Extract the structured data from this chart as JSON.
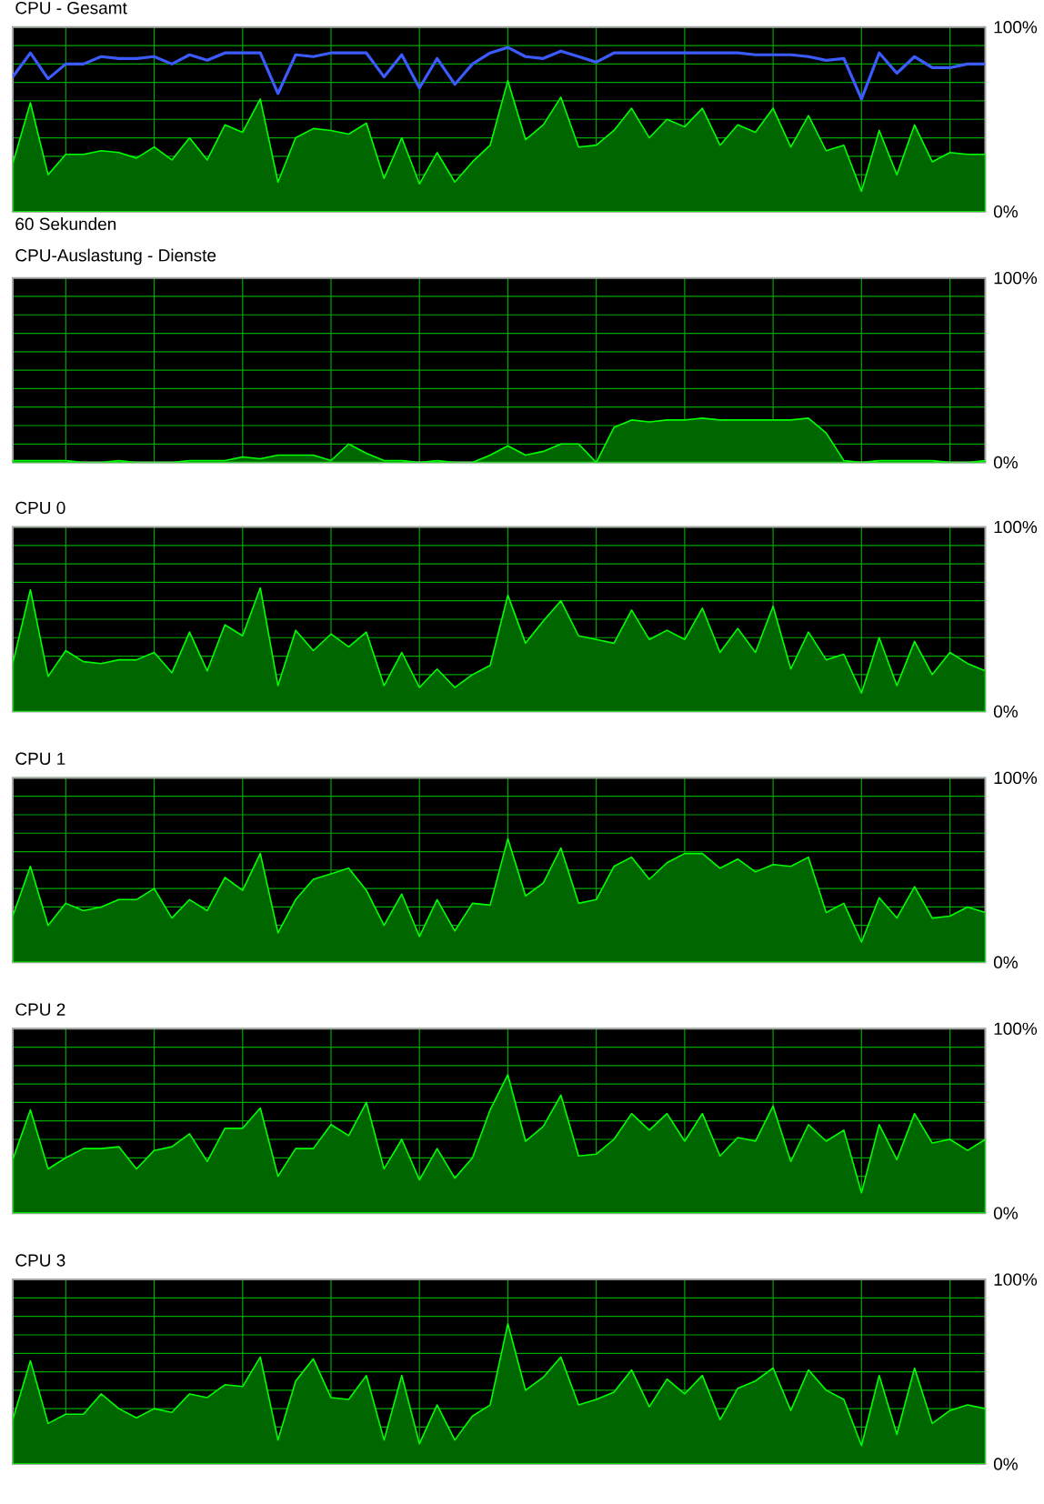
{
  "chart_data": [
    {
      "type": "area",
      "title": "CPU - Gesamt",
      "xlabel": "60 Sekunden",
      "categories": [
        null,
        null,
        null,
        null,
        null,
        null,
        null,
        null,
        null,
        null,
        null,
        null,
        null,
        null,
        null,
        null,
        null,
        null,
        null,
        null,
        null,
        null,
        null,
        null,
        null,
        null,
        null,
        null,
        null,
        null,
        null,
        null,
        null,
        null,
        null,
        null,
        null,
        null,
        null,
        null,
        null,
        null,
        null,
        null,
        null,
        null,
        null,
        null,
        null,
        null,
        null,
        null,
        null,
        null,
        null,
        null
      ],
      "ylim": [
        0,
        100
      ],
      "yticks": [
        {
          "value": 0,
          "label": "0%"
        },
        {
          "value": 10,
          "label": null
        },
        {
          "value": 20,
          "label": null
        },
        {
          "value": 30,
          "label": null
        },
        {
          "value": 40,
          "label": null
        },
        {
          "value": 50,
          "label": null
        },
        {
          "value": 60,
          "label": null
        },
        {
          "value": 70,
          "label": null
        },
        {
          "value": 80,
          "label": null
        },
        {
          "value": 90,
          "label": null
        },
        {
          "value": 100,
          "label": "100%"
        }
      ],
      "grid": true,
      "tick_labels": "y",
      "series": [
        {
          "color": "#006600",
          "values": [
            26,
            59,
            20,
            31,
            31,
            33,
            32,
            29,
            35,
            28,
            40,
            28,
            47,
            43,
            61,
            16,
            40,
            45,
            44,
            42,
            48,
            18,
            40,
            15,
            32,
            16,
            27,
            36,
            71,
            39,
            47,
            62,
            35,
            36,
            44,
            56,
            40,
            50,
            46,
            56,
            36,
            47,
            43,
            56,
            35,
            52,
            33,
            36,
            11,
            44,
            20,
            47,
            27,
            32,
            31,
            31
          ]
        },
        {
          "type": "line",
          "color": "#3b5bff",
          "values": [
            73,
            86,
            72,
            80,
            80,
            84,
            83,
            83,
            84,
            80,
            85,
            82,
            86,
            86,
            86,
            64,
            85,
            84,
            86,
            86,
            86,
            73,
            85,
            67,
            83,
            69,
            80,
            86,
            89,
            84,
            83,
            87,
            84,
            81,
            86,
            86,
            86,
            86,
            86,
            86,
            86,
            86,
            85,
            85,
            85,
            84,
            82,
            83,
            61,
            86,
            75,
            84,
            78,
            78,
            80,
            80
          ]
        }
      ]
    },
    {
      "type": "area",
      "title": "CPU-Auslastung - Dienste",
      "categories": [
        null,
        null,
        null,
        null,
        null,
        null,
        null,
        null,
        null,
        null,
        null,
        null,
        null,
        null,
        null,
        null,
        null,
        null,
        null,
        null,
        null,
        null,
        null,
        null,
        null,
        null,
        null,
        null,
        null,
        null,
        null,
        null,
        null,
        null,
        null,
        null,
        null,
        null,
        null,
        null,
        null,
        null,
        null,
        null,
        null,
        null,
        null,
        null,
        null,
        null,
        null,
        null,
        null,
        null,
        null,
        null
      ],
      "ylim": [
        0,
        100
      ],
      "yticks": [
        {
          "value": 0,
          "label": "0%"
        },
        {
          "value": 10,
          "label": null
        },
        {
          "value": 20,
          "label": null
        },
        {
          "value": 30,
          "label": null
        },
        {
          "value": 40,
          "label": null
        },
        {
          "value": 50,
          "label": null
        },
        {
          "value": 60,
          "label": null
        },
        {
          "value": 70,
          "label": null
        },
        {
          "value": 80,
          "label": null
        },
        {
          "value": 90,
          "label": null
        },
        {
          "value": 100,
          "label": "100%"
        }
      ],
      "grid": true,
      "tick_labels": "y",
      "series": [
        {
          "color": "#006600",
          "values": [
            1,
            1,
            1,
            1,
            0,
            0,
            1,
            0,
            0,
            0,
            1,
            1,
            1,
            3,
            2,
            4,
            4,
            4,
            1,
            10,
            5,
            1,
            1,
            0,
            1,
            0,
            0,
            4,
            9,
            4,
            6,
            10,
            10,
            0,
            19,
            23,
            22,
            23,
            23,
            24,
            23,
            23,
            23,
            23,
            23,
            24,
            16,
            1,
            0,
            1,
            1,
            1,
            1,
            0,
            0,
            1
          ]
        }
      ]
    },
    {
      "type": "area",
      "title": "CPU 0",
      "categories": [
        null,
        null,
        null,
        null,
        null,
        null,
        null,
        null,
        null,
        null,
        null,
        null,
        null,
        null,
        null,
        null,
        null,
        null,
        null,
        null,
        null,
        null,
        null,
        null,
        null,
        null,
        null,
        null,
        null,
        null,
        null,
        null,
        null,
        null,
        null,
        null,
        null,
        null,
        null,
        null,
        null,
        null,
        null,
        null,
        null,
        null,
        null,
        null,
        null,
        null,
        null,
        null,
        null,
        null,
        null,
        null
      ],
      "ylim": [
        0,
        100
      ],
      "yticks": [
        {
          "value": 0,
          "label": "0%"
        },
        {
          "value": 10,
          "label": null
        },
        {
          "value": 20,
          "label": null
        },
        {
          "value": 30,
          "label": null
        },
        {
          "value": 40,
          "label": null
        },
        {
          "value": 50,
          "label": null
        },
        {
          "value": 60,
          "label": null
        },
        {
          "value": 70,
          "label": null
        },
        {
          "value": 80,
          "label": null
        },
        {
          "value": 90,
          "label": null
        },
        {
          "value": 100,
          "label": "100%"
        }
      ],
      "grid": true,
      "tick_labels": "y",
      "series": [
        {
          "color": "#006600",
          "values": [
            26,
            66,
            19,
            33,
            27,
            26,
            28,
            28,
            32,
            21,
            43,
            22,
            47,
            41,
            67,
            14,
            44,
            33,
            42,
            35,
            43,
            14,
            32,
            13,
            23,
            13,
            20,
            25,
            63,
            37,
            49,
            60,
            41,
            39,
            37,
            55,
            39,
            44,
            39,
            56,
            32,
            45,
            32,
            57,
            23,
            43,
            28,
            31,
            10,
            40,
            14,
            38,
            20,
            32,
            26,
            22
          ]
        }
      ]
    },
    {
      "type": "area",
      "title": "CPU 1",
      "categories": [
        null,
        null,
        null,
        null,
        null,
        null,
        null,
        null,
        null,
        null,
        null,
        null,
        null,
        null,
        null,
        null,
        null,
        null,
        null,
        null,
        null,
        null,
        null,
        null,
        null,
        null,
        null,
        null,
        null,
        null,
        null,
        null,
        null,
        null,
        null,
        null,
        null,
        null,
        null,
        null,
        null,
        null,
        null,
        null,
        null,
        null,
        null,
        null,
        null,
        null,
        null,
        null,
        null,
        null,
        null,
        null
      ],
      "ylim": [
        0,
        100
      ],
      "yticks": [
        {
          "value": 0,
          "label": "0%"
        },
        {
          "value": 10,
          "label": null
        },
        {
          "value": 20,
          "label": null
        },
        {
          "value": 30,
          "label": null
        },
        {
          "value": 40,
          "label": null
        },
        {
          "value": 50,
          "label": null
        },
        {
          "value": 60,
          "label": null
        },
        {
          "value": 70,
          "label": null
        },
        {
          "value": 80,
          "label": null
        },
        {
          "value": 90,
          "label": null
        },
        {
          "value": 100,
          "label": "100%"
        }
      ],
      "grid": true,
      "tick_labels": "y",
      "series": [
        {
          "color": "#006600",
          "values": [
            25,
            52,
            20,
            32,
            28,
            30,
            34,
            34,
            40,
            24,
            34,
            28,
            46,
            39,
            59,
            16,
            34,
            45,
            48,
            51,
            39,
            20,
            37,
            14,
            34,
            17,
            32,
            31,
            67,
            36,
            43,
            62,
            32,
            34,
            52,
            57,
            45,
            54,
            59,
            59,
            51,
            56,
            49,
            53,
            52,
            57,
            27,
            32,
            11,
            35,
            24,
            41,
            24,
            25,
            30,
            27
          ]
        }
      ]
    },
    {
      "type": "area",
      "title": "CPU 2",
      "categories": [
        null,
        null,
        null,
        null,
        null,
        null,
        null,
        null,
        null,
        null,
        null,
        null,
        null,
        null,
        null,
        null,
        null,
        null,
        null,
        null,
        null,
        null,
        null,
        null,
        null,
        null,
        null,
        null,
        null,
        null,
        null,
        null,
        null,
        null,
        null,
        null,
        null,
        null,
        null,
        null,
        null,
        null,
        null,
        null,
        null,
        null,
        null,
        null,
        null,
        null,
        null,
        null,
        null,
        null,
        null,
        null
      ],
      "ylim": [
        0,
        100
      ],
      "yticks": [
        {
          "value": 0,
          "label": "0%"
        },
        {
          "value": 10,
          "label": null
        },
        {
          "value": 20,
          "label": null
        },
        {
          "value": 30,
          "label": null
        },
        {
          "value": 40,
          "label": null
        },
        {
          "value": 50,
          "label": null
        },
        {
          "value": 60,
          "label": null
        },
        {
          "value": 70,
          "label": null
        },
        {
          "value": 80,
          "label": null
        },
        {
          "value": 90,
          "label": null
        },
        {
          "value": 100,
          "label": "100%"
        }
      ],
      "grid": true,
      "tick_labels": "y",
      "series": [
        {
          "color": "#006600",
          "values": [
            29,
            56,
            24,
            30,
            35,
            35,
            36,
            24,
            34,
            36,
            43,
            28,
            46,
            46,
            57,
            20,
            35,
            35,
            48,
            42,
            60,
            24,
            40,
            18,
            35,
            19,
            30,
            56,
            75,
            39,
            47,
            64,
            31,
            32,
            40,
            54,
            45,
            54,
            39,
            54,
            31,
            41,
            39,
            58,
            28,
            48,
            39,
            45,
            11,
            48,
            29,
            54,
            38,
            40,
            34,
            40
          ]
        }
      ]
    },
    {
      "type": "area",
      "title": "CPU 3",
      "categories": [
        null,
        null,
        null,
        null,
        null,
        null,
        null,
        null,
        null,
        null,
        null,
        null,
        null,
        null,
        null,
        null,
        null,
        null,
        null,
        null,
        null,
        null,
        null,
        null,
        null,
        null,
        null,
        null,
        null,
        null,
        null,
        null,
        null,
        null,
        null,
        null,
        null,
        null,
        null,
        null,
        null,
        null,
        null,
        null,
        null,
        null,
        null,
        null,
        null,
        null,
        null,
        null,
        null,
        null,
        null,
        null
      ],
      "ylim": [
        0,
        100
      ],
      "yticks": [
        {
          "value": 0,
          "label": "0%"
        },
        {
          "value": 10,
          "label": null
        },
        {
          "value": 20,
          "label": null
        },
        {
          "value": 30,
          "label": null
        },
        {
          "value": 40,
          "label": null
        },
        {
          "value": 50,
          "label": null
        },
        {
          "value": 60,
          "label": null
        },
        {
          "value": 70,
          "label": null
        },
        {
          "value": 80,
          "label": null
        },
        {
          "value": 90,
          "label": null
        },
        {
          "value": 100,
          "label": "100%"
        }
      ],
      "grid": true,
      "tick_labels": "y",
      "series": [
        {
          "color": "#006600",
          "values": [
            24,
            56,
            22,
            27,
            27,
            38,
            30,
            25,
            30,
            28,
            38,
            36,
            43,
            42,
            58,
            13,
            45,
            57,
            36,
            35,
            48,
            13,
            48,
            11,
            32,
            13,
            26,
            32,
            76,
            40,
            47,
            58,
            32,
            35,
            39,
            51,
            31,
            46,
            38,
            48,
            24,
            41,
            45,
            52,
            29,
            51,
            40,
            35,
            10,
            48,
            16,
            52,
            22,
            29,
            32,
            30
          ]
        }
      ]
    }
  ]
}
